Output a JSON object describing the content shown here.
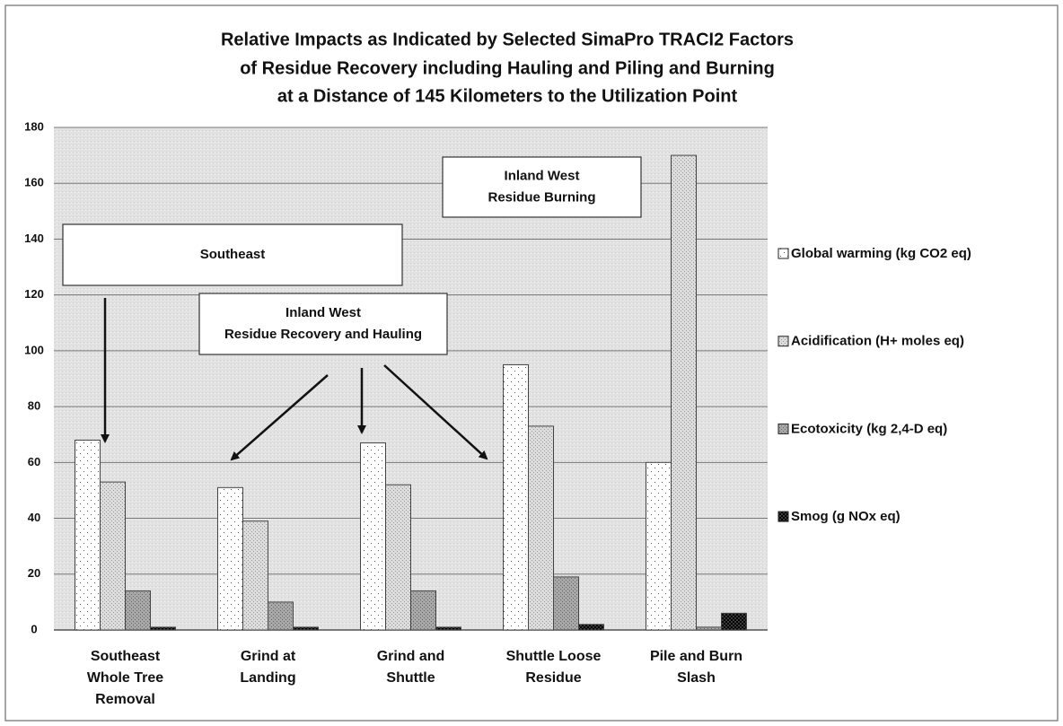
{
  "chart_data": {
    "type": "bar",
    "title": [
      "Relative Impacts as Indicated by Selected SimaPro TRACI2 Factors",
      "of Residue Recovery including Hauling and Piling and Burning",
      "at a Distance of 145 Kilometers to the Utilization Point"
    ],
    "categories": [
      "Southeast\nWhole Tree\nRemoval",
      "Grind at\nLanding",
      "Grind and\nShuttle",
      "Shuttle Loose\nResidue",
      "Pile and Burn\nSlash"
    ],
    "series": [
      {
        "name": "Global warming (kg CO2 eq)",
        "color": "#ffffff",
        "values": [
          68,
          51,
          67,
          95,
          60
        ]
      },
      {
        "name": "Acidification (H+ moles eq)",
        "color": "#dcdcdc",
        "values": [
          53,
          39,
          52,
          73,
          170
        ]
      },
      {
        "name": "Ecotoxicity (kg 2,4-D eq)",
        "color": "#a8a8a8",
        "values": [
          14,
          10,
          14,
          19,
          1
        ]
      },
      {
        "name": "Smog (g NOx eq)",
        "color": "#3a3a3a",
        "values": [
          1,
          1,
          1,
          2,
          6
        ]
      }
    ],
    "ylim": [
      0,
      180
    ],
    "yticks": [
      0,
      20,
      40,
      60,
      80,
      100,
      120,
      140,
      160,
      180
    ],
    "grid": true,
    "legend": "right",
    "annotations": [
      {
        "text": [
          "Southeast"
        ]
      },
      {
        "text": [
          "Inland West",
          "Residue Recovery and Hauling"
        ]
      },
      {
        "text": [
          "Inland West",
          "Residue Burning"
        ]
      }
    ]
  }
}
